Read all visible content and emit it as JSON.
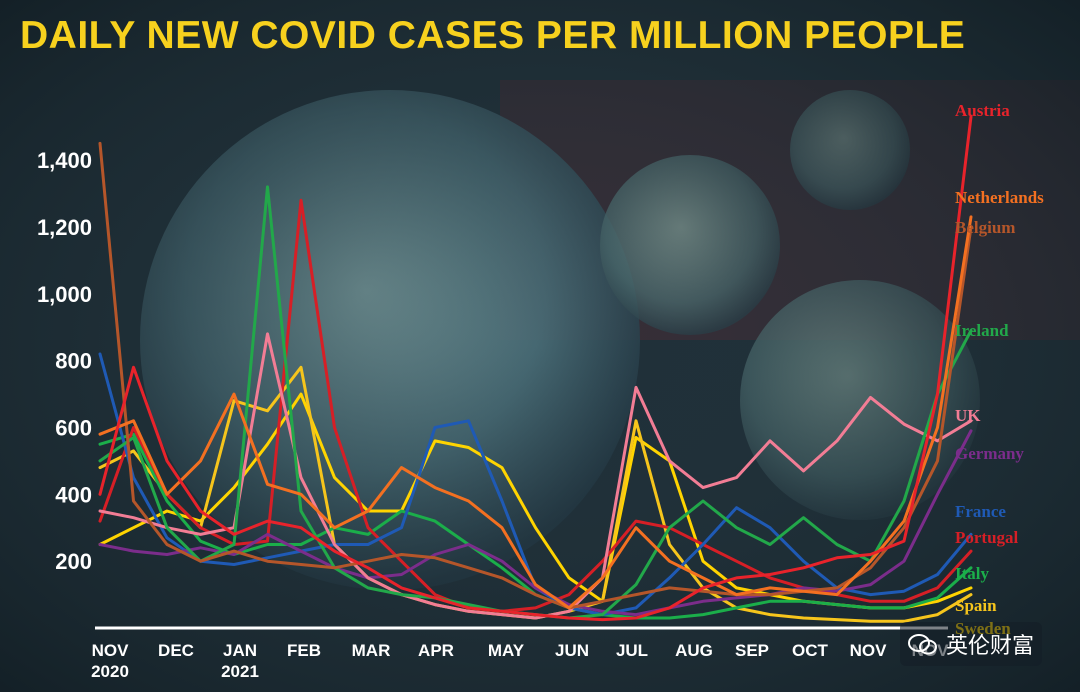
{
  "title": "DAILY NEW COVID CASES PER MILLION PEOPLE",
  "watermark": "英伦财富",
  "chart_data": {
    "type": "line",
    "title": "DAILY NEW COVID CASES PER MILLION PEOPLE",
    "xlabel": "",
    "ylabel": "",
    "ylim": [
      0,
      1550
    ],
    "yticks": [
      "200",
      "400",
      "600",
      "800",
      "1,000",
      "1,200",
      "1,400"
    ],
    "ytick_values": [
      200,
      400,
      600,
      800,
      1000,
      1200,
      1400
    ],
    "grid": false,
    "legend_position": "right",
    "months": [
      {
        "label": "NOV",
        "year": "2020"
      },
      {
        "label": "DEC",
        "year": ""
      },
      {
        "label": "JAN",
        "year": "2021"
      },
      {
        "label": "FEB",
        "year": ""
      },
      {
        "label": "MAR",
        "year": ""
      },
      {
        "label": "APR",
        "year": ""
      },
      {
        "label": "MAY",
        "year": ""
      },
      {
        "label": "JUN",
        "year": ""
      },
      {
        "label": "JUL",
        "year": ""
      },
      {
        "label": "AUG",
        "year": ""
      },
      {
        "label": "SEP",
        "year": ""
      },
      {
        "label": "OCT",
        "year": ""
      },
      {
        "label": "NOV",
        "year": ""
      },
      {
        "label": "NOV",
        "year": ""
      }
    ],
    "x": [
      0,
      0.5,
      1,
      1.5,
      2,
      2.5,
      3,
      3.5,
      4,
      4.5,
      5,
      5.5,
      6,
      6.5,
      7,
      7.5,
      8,
      8.5,
      9,
      9.5,
      10,
      10.5,
      11,
      11.5,
      12,
      12.5,
      13
    ],
    "series": [
      {
        "name": "Austria",
        "color": "#e8232b",
        "values": [
          400,
          780,
          500,
          350,
          280,
          320,
          300,
          230,
          180,
          120,
          90,
          60,
          50,
          40,
          30,
          25,
          30,
          60,
          120,
          150,
          160,
          180,
          210,
          220,
          260,
          700,
          1530
        ]
      },
      {
        "name": "Netherlands",
        "color": "#f37021",
        "values": [
          580,
          620,
          400,
          500,
          700,
          430,
          400,
          300,
          350,
          480,
          420,
          380,
          300,
          130,
          60,
          150,
          300,
          200,
          150,
          100,
          120,
          110,
          100,
          200,
          320,
          600,
          1230
        ]
      },
      {
        "name": "Belgium",
        "color": "#b5562a",
        "values": [
          1450,
          380,
          250,
          200,
          230,
          200,
          190,
          180,
          200,
          220,
          210,
          180,
          150,
          100,
          60,
          80,
          100,
          120,
          110,
          100,
          100,
          110,
          120,
          180,
          300,
          500,
          1200
        ]
      },
      {
        "name": "Ireland",
        "color": "#22a84a",
        "values": [
          500,
          570,
          300,
          200,
          250,
          1320,
          350,
          180,
          120,
          100,
          90,
          70,
          50,
          40,
          30,
          40,
          130,
          300,
          380,
          300,
          250,
          330,
          250,
          200,
          380,
          700,
          890
        ]
      },
      {
        "name": "UK",
        "color": "#f27d95",
        "values": [
          350,
          330,
          300,
          280,
          300,
          880,
          450,
          250,
          150,
          100,
          70,
          50,
          40,
          30,
          50,
          150,
          720,
          500,
          420,
          450,
          560,
          470,
          560,
          690,
          610,
          560,
          620
        ]
      },
      {
        "name": "Germany",
        "color": "#7b2d8b",
        "values": [
          250,
          230,
          220,
          240,
          220,
          280,
          230,
          180,
          150,
          160,
          220,
          250,
          200,
          120,
          70,
          50,
          40,
          60,
          80,
          90,
          100,
          120,
          110,
          130,
          200,
          400,
          590
        ]
      },
      {
        "name": "France",
        "color": "#1f5ab5",
        "values": [
          820,
          450,
          270,
          200,
          190,
          210,
          230,
          250,
          250,
          300,
          600,
          620,
          380,
          120,
          60,
          40,
          60,
          150,
          250,
          360,
          300,
          200,
          120,
          100,
          110,
          160,
          280
        ]
      },
      {
        "name": "Portugal",
        "color": "#d61f26",
        "values": [
          320,
          600,
          400,
          300,
          250,
          260,
          1280,
          600,
          300,
          200,
          100,
          60,
          50,
          60,
          100,
          200,
          320,
          300,
          250,
          200,
          150,
          120,
          100,
          80,
          80,
          120,
          230
        ]
      },
      {
        "name": "Italy",
        "color": "#1bae4a",
        "values": [
          550,
          580,
          380,
          260,
          220,
          250,
          250,
          300,
          280,
          350,
          320,
          250,
          180,
          100,
          60,
          40,
          30,
          30,
          40,
          60,
          80,
          80,
          70,
          60,
          60,
          90,
          180
        ]
      },
      {
        "name": "Spain",
        "color": "#f6c51c",
        "values": [
          480,
          530,
          400,
          300,
          680,
          650,
          780,
          250,
          150,
          100,
          70,
          50,
          40,
          30,
          50,
          80,
          620,
          250,
          120,
          60,
          40,
          30,
          25,
          20,
          20,
          40,
          100
        ]
      },
      {
        "name": "Sweden",
        "color": "#ffd400",
        "values": [
          250,
          300,
          350,
          320,
          420,
          550,
          700,
          450,
          350,
          350,
          560,
          540,
          480,
          300,
          150,
          80,
          570,
          500,
          200,
          120,
          100,
          80,
          70,
          60,
          60,
          80,
          120
        ]
      }
    ]
  }
}
